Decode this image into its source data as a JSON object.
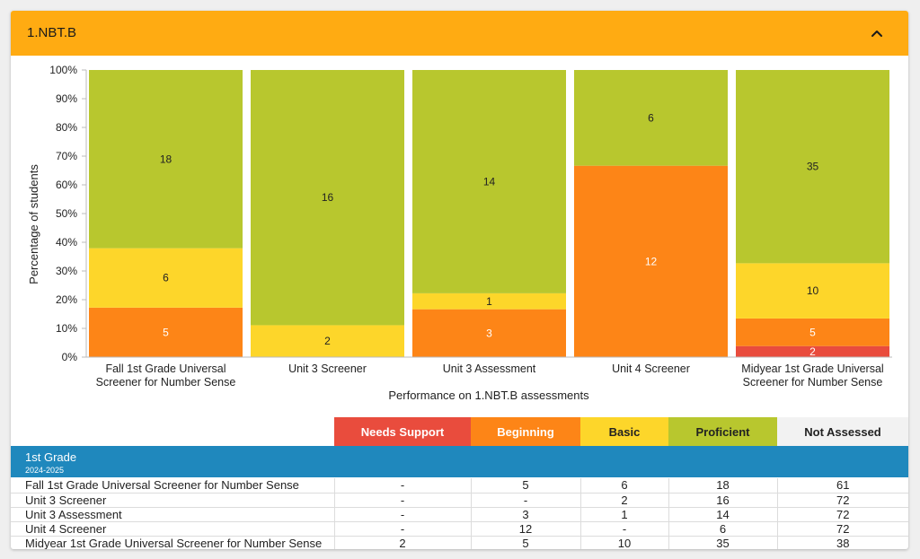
{
  "header": {
    "title": "1.NBT.B"
  },
  "chart_data": {
    "type": "bar",
    "stacked": true,
    "percent_stacked": true,
    "ylabel": "Percentage of students",
    "xlabel": "Performance on 1.NBT.B assessments",
    "ylim": [
      0,
      100
    ],
    "yticks": [
      "0%",
      "10%",
      "20%",
      "30%",
      "40%",
      "50%",
      "60%",
      "70%",
      "80%",
      "90%",
      "100%"
    ],
    "categories": [
      [
        "Fall 1st Grade Universal",
        "Screener for Number Sense"
      ],
      [
        "Unit 3 Screener"
      ],
      [
        "Unit 3 Assessment"
      ],
      [
        "Unit 4 Screener"
      ],
      [
        "Midyear 1st Grade Universal",
        "Screener for Number Sense"
      ]
    ],
    "series": [
      {
        "name": "Needs Support",
        "color": "#e94c3d",
        "values": [
          0,
          0,
          0,
          0,
          2
        ]
      },
      {
        "name": "Beginning",
        "color": "#fd8517",
        "values": [
          5,
          0,
          3,
          12,
          5
        ]
      },
      {
        "name": "Basic",
        "color": "#fdd62a",
        "values": [
          6,
          2,
          1,
          0,
          10
        ]
      },
      {
        "name": "Proficient",
        "color": "#b8c72e",
        "values": [
          18,
          16,
          14,
          6,
          35
        ]
      }
    ]
  },
  "legend": [
    {
      "label": "Needs Support",
      "bg": "#e94c3d",
      "fg": "#ffffff"
    },
    {
      "label": "Beginning",
      "bg": "#fd8517",
      "fg": "#ffffff"
    },
    {
      "label": "Basic",
      "bg": "#fdd62a",
      "fg": "#222222"
    },
    {
      "label": "Proficient",
      "bg": "#b8c72e",
      "fg": "#222222"
    },
    {
      "label": "Not Assessed",
      "bg": "#f2f2f2",
      "fg": "#222222"
    }
  ],
  "table": {
    "group_name": "1st Grade",
    "group_year": "2024-2025",
    "rows": [
      {
        "name": "Fall 1st Grade Universal Screener for Number Sense",
        "cells": [
          "-",
          "5",
          "6",
          "18",
          "61"
        ]
      },
      {
        "name": "Unit 3 Screener",
        "cells": [
          "-",
          "-",
          "2",
          "16",
          "72"
        ]
      },
      {
        "name": "Unit 3 Assessment",
        "cells": [
          "-",
          "3",
          "1",
          "14",
          "72"
        ]
      },
      {
        "name": "Unit 4 Screener",
        "cells": [
          "-",
          "12",
          "-",
          "6",
          "72"
        ]
      },
      {
        "name": "Midyear 1st Grade Universal Screener for Number Sense",
        "cells": [
          "2",
          "5",
          "10",
          "35",
          "38"
        ]
      }
    ]
  }
}
